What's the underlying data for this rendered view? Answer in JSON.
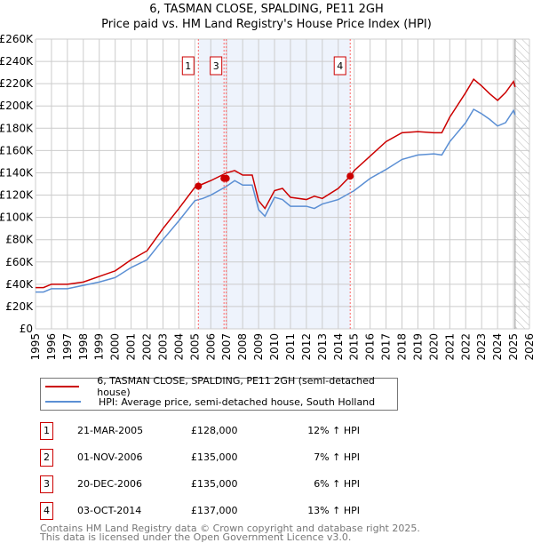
{
  "title": "6, TASMAN CLOSE, SPALDING, PE11 2GH",
  "subtitle": "Price paid vs. HM Land Registry's House Price Index (HPI)",
  "colors": {
    "property": "#cc0000",
    "hpi": "#5b8fd4",
    "shade": "#eef3fc",
    "grid": "#cccccc"
  },
  "chart_data": {
    "type": "line",
    "title": "6, TASMAN CLOSE, SPALDING, PE11 2GH",
    "xlabel": "",
    "ylabel": "",
    "xlim": [
      1995,
      2026
    ],
    "ylim": [
      0,
      260000
    ],
    "yticks": [
      "£0",
      "£20K",
      "£40K",
      "£60K",
      "£80K",
      "£100K",
      "£120K",
      "£140K",
      "£160K",
      "£180K",
      "£200K",
      "£220K",
      "£240K",
      "£260K"
    ],
    "xticks": [
      "1995",
      "1996",
      "1997",
      "1998",
      "1999",
      "2000",
      "2001",
      "2002",
      "2003",
      "2004",
      "2005",
      "2006",
      "2007",
      "2008",
      "2009",
      "2010",
      "2011",
      "2012",
      "2013",
      "2014",
      "2015",
      "2016",
      "2017",
      "2018",
      "2019",
      "2020",
      "2021",
      "2022",
      "2023",
      "2024",
      "2025",
      "2026"
    ],
    "shaded_range": [
      2005.22,
      2014.75
    ],
    "forecast_hatch_from": 2025.1,
    "series": [
      {
        "name": "6, TASMAN CLOSE, SPALDING, PE11 2GH (semi-detached house)",
        "x": [
          1995,
          1995.5,
          1996,
          1997,
          1998,
          1999,
          2000,
          2001,
          2002,
          2003,
          2004,
          2005,
          2005.5,
          2006,
          2007,
          2007.5,
          2008,
          2008.6,
          2009,
          2009.4,
          2010,
          2010.5,
          2011,
          2012,
          2012.5,
          2013,
          2014,
          2014.75,
          2015,
          2016,
          2017,
          2018,
          2019,
          2020,
          2020.5,
          2021,
          2022,
          2022.5,
          2023,
          2023.5,
          2024,
          2024.5,
          2025,
          2025.1
        ],
        "y": [
          37000,
          37000,
          40000,
          40000,
          42000,
          47000,
          52000,
          62000,
          70000,
          90000,
          108000,
          127000,
          130000,
          133000,
          140000,
          142000,
          138000,
          138000,
          115000,
          108000,
          124000,
          126000,
          118000,
          116000,
          119000,
          117000,
          126000,
          137000,
          142000,
          155000,
          168000,
          176000,
          177000,
          176000,
          176000,
          190000,
          212000,
          224000,
          218000,
          211000,
          205000,
          212000,
          222000,
          217000
        ]
      },
      {
        "name": "HPI: Average price, semi-detached house, South Holland",
        "x": [
          1995,
          1995.5,
          1996,
          1997,
          1998,
          1999,
          2000,
          2001,
          2002,
          2003,
          2004,
          2005,
          2005.5,
          2006,
          2007,
          2007.5,
          2008,
          2008.6,
          2009,
          2009.4,
          2010,
          2010.5,
          2011,
          2012,
          2012.5,
          2013,
          2014,
          2014.75,
          2015,
          2016,
          2017,
          2018,
          2019,
          2020,
          2020.5,
          2021,
          2022,
          2022.5,
          2023,
          2023.5,
          2024,
          2024.5,
          2025,
          2025.1
        ],
        "y": [
          33000,
          33000,
          36000,
          36000,
          39000,
          42000,
          46000,
          55000,
          62000,
          80000,
          97000,
          115000,
          117000,
          120000,
          128000,
          133000,
          129000,
          129000,
          107000,
          101000,
          118000,
          116000,
          110000,
          110000,
          108000,
          112000,
          116000,
          122000,
          124000,
          135000,
          143000,
          152000,
          156000,
          157000,
          156000,
          168000,
          185000,
          197000,
          193000,
          188000,
          182000,
          185000,
          196000,
          192000
        ]
      }
    ],
    "sales": [
      {
        "label": "1",
        "x": 2005.22,
        "y": 128000,
        "show_label": true
      },
      {
        "label": "2",
        "x": 2006.83,
        "y": 135000,
        "show_label": false
      },
      {
        "label": "3",
        "x": 2006.97,
        "y": 135000,
        "show_label": true
      },
      {
        "label": "4",
        "x": 2014.75,
        "y": 137000,
        "show_label": true
      }
    ]
  },
  "legend": {
    "property": "6, TASMAN CLOSE, SPALDING, PE11 2GH (semi-detached house)",
    "hpi": "HPI: Average price, semi-detached house, South Holland"
  },
  "table": [
    {
      "num": "1",
      "date": "21-MAR-2005",
      "price": "£128,000",
      "delta": "12% ↑ HPI"
    },
    {
      "num": "2",
      "date": "01-NOV-2006",
      "price": "£135,000",
      "delta": "7% ↑ HPI"
    },
    {
      "num": "3",
      "date": "20-DEC-2006",
      "price": "£135,000",
      "delta": "6% ↑ HPI"
    },
    {
      "num": "4",
      "date": "03-OCT-2014",
      "price": "£137,000",
      "delta": "13% ↑ HPI"
    }
  ],
  "footer": {
    "line1": "Contains HM Land Registry data © Crown copyright and database right 2025.",
    "line2": "This data is licensed under the Open Government Licence v3.0."
  }
}
